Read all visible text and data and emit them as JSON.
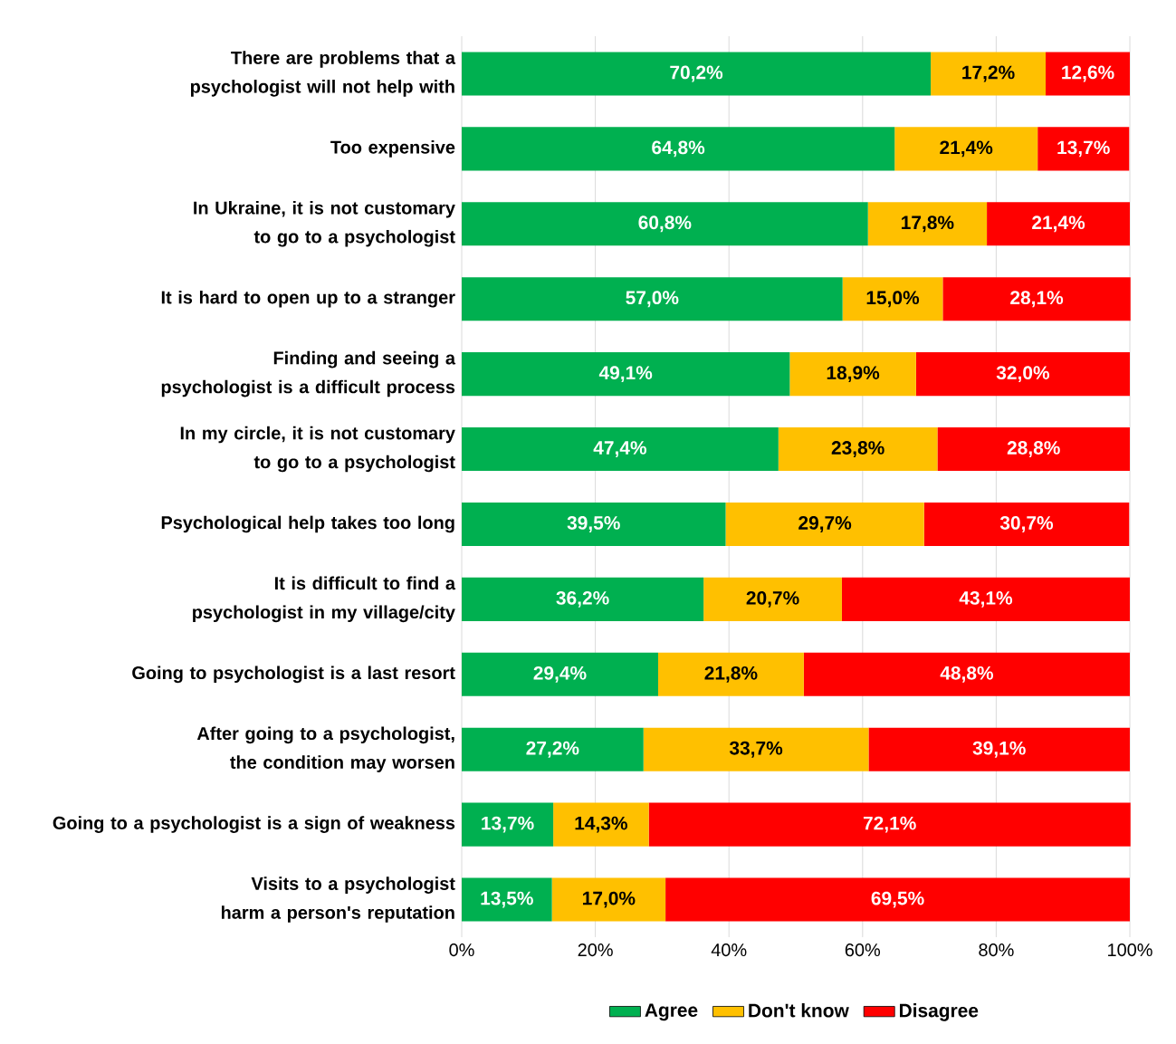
{
  "chart_data": {
    "type": "bar",
    "orientation": "horizontal",
    "stacked": true,
    "categories": [
      "There are problems that a psychologist will not help with",
      "Too expensive",
      "In Ukraine, it is not customary to go to a psychologist",
      "It is hard to open up to a stranger",
      "Finding and seeing a psychologist is a difficult process",
      "In my circle, it is not customary to go to a psychologist",
      "Psychological help takes too long",
      "It is difficult to find a psychologist in my village/city",
      "Going to psychologist is a last resort",
      "After going to a psychologist, the condition may worsen",
      "Going to a psychologist is a sign of weakness",
      "Visits to a psychologist harm a person's reputation"
    ],
    "series": [
      {
        "name": "Agree",
        "color": "#00b050",
        "values": [
          70.2,
          64.8,
          60.8,
          57.0,
          49.1,
          47.4,
          39.5,
          36.2,
          29.4,
          27.2,
          13.7,
          13.5
        ],
        "value_labels": [
          "70,2%",
          "64,8%",
          "60,8%",
          "57,0%",
          "49,1%",
          "47,4%",
          "39,5%",
          "36,2%",
          "29,4%",
          "27,2%",
          "13,7%",
          "13,5%"
        ]
      },
      {
        "name": "Don't know",
        "color": "#ffc000",
        "values": [
          17.2,
          21.4,
          17.8,
          15.0,
          18.9,
          23.8,
          29.7,
          20.7,
          21.8,
          33.7,
          14.3,
          17.0
        ],
        "value_labels": [
          "17,2%",
          "21,4%",
          "17,8%",
          "15,0%",
          "18,9%",
          "23,8%",
          "29,7%",
          "20,7%",
          "21,8%",
          "33,7%",
          "14,3%",
          "17,0%"
        ]
      },
      {
        "name": "Disagree",
        "color": "#ff0000",
        "values": [
          12.6,
          13.7,
          21.4,
          28.1,
          32.0,
          28.8,
          30.7,
          43.1,
          48.8,
          39.1,
          72.1,
          69.5
        ],
        "value_labels": [
          "12,6%",
          "13,7%",
          "21,4%",
          "28,1%",
          "32,0%",
          "28,8%",
          "30,7%",
          "43,1%",
          "48,8%",
          "39,1%",
          "72,1%",
          "69,5%"
        ]
      }
    ],
    "xlim": [
      0,
      100
    ],
    "xticks": [
      {
        "value": 0,
        "label": "0%"
      },
      {
        "value": 20,
        "label": "20%"
      },
      {
        "value": 40,
        "label": "40%"
      },
      {
        "value": 60,
        "label": "60%"
      },
      {
        "value": 80,
        "label": "80%"
      },
      {
        "value": 100,
        "label": "100%"
      }
    ],
    "grid": "x",
    "legend": "bottom"
  }
}
